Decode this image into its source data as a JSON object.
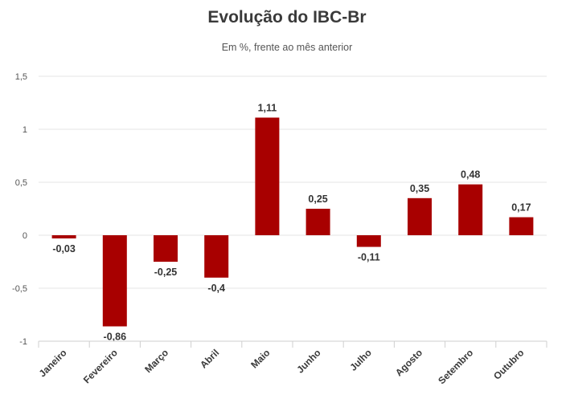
{
  "chart_data": {
    "type": "bar",
    "title": "Evolução do IBC-Br",
    "subtitle": "Em %, frente ao mês anterior",
    "xlabel": "",
    "ylabel": "",
    "categories": [
      "Janeiro",
      "Fevereiro",
      "Março",
      "Abril",
      "Maio",
      "Junho",
      "Julho",
      "Agosto",
      "Setembro",
      "Outubro"
    ],
    "values": [
      -0.03,
      -0.86,
      -0.25,
      -0.4,
      1.11,
      0.25,
      -0.11,
      0.35,
      0.48,
      0.17
    ],
    "data_labels": [
      "-0,03",
      "-0,86",
      "-0,25",
      "-0,4",
      "1,11",
      "0,25",
      "-0,11",
      "0,35",
      "0,48",
      "0,17"
    ],
    "ylim": [
      -1,
      1.5
    ],
    "yticks": [
      1.5,
      1,
      0.5,
      0,
      -0.5,
      -1
    ],
    "ytick_labels": [
      "1,5",
      "1",
      "0,5",
      "0",
      "-0,5",
      "-1"
    ],
    "grid": true,
    "bar_color": "#a80000"
  }
}
